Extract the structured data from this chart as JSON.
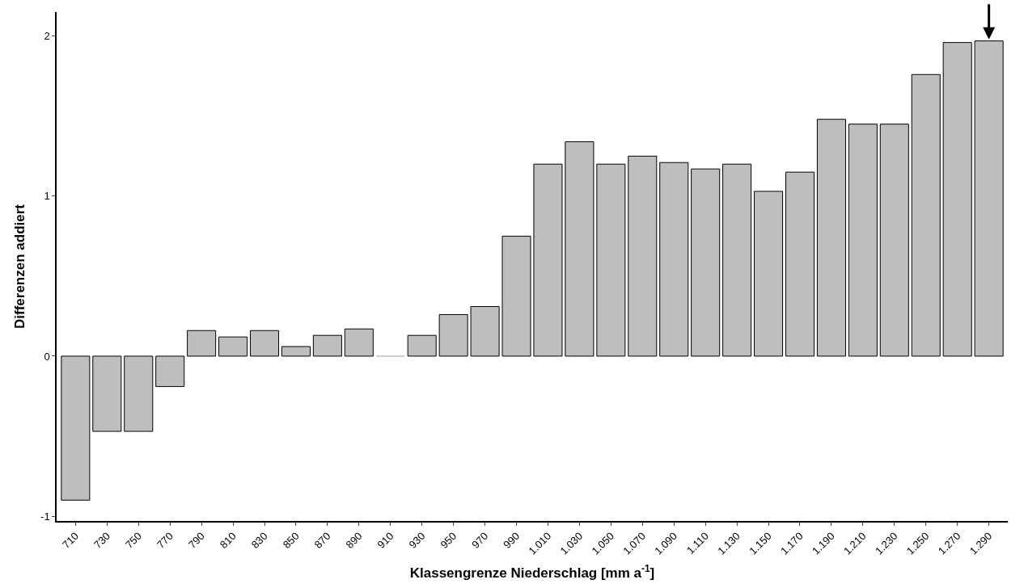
{
  "chart_data": {
    "type": "bar",
    "xlabel": "Klassengrenze Niederschlag [mm a$^{-1}$]",
    "ylabel": "Differenzen addiert",
    "categories": [
      "710",
      "730",
      "750",
      "770",
      "790",
      "810",
      "830",
      "850",
      "870",
      "890",
      "910",
      "930",
      "950",
      "970",
      "990",
      "1.010",
      "1.030",
      "1.050",
      "1.070",
      "1.090",
      "1.110",
      "1.130",
      "1.150",
      "1.170",
      "1.190",
      "1.210",
      "1.230",
      "1.250",
      "1.270",
      "1.290"
    ],
    "values": [
      -0.9,
      -0.47,
      -0.47,
      -0.19,
      0.16,
      0.12,
      0.16,
      0.06,
      0.13,
      0.17,
      0,
      0.13,
      0.26,
      0.31,
      0.75,
      1.2,
      1.34,
      1.2,
      1.25,
      1.21,
      1.17,
      1.2,
      1.03,
      1.15,
      1.48,
      1.45,
      1.45,
      1.76,
      1.96,
      1.97
    ],
    "color": "#bebebe",
    "ylim": [
      -1.03,
      2.15
    ],
    "yticks": [
      -1,
      0,
      1,
      2
    ],
    "legend": false
  }
}
